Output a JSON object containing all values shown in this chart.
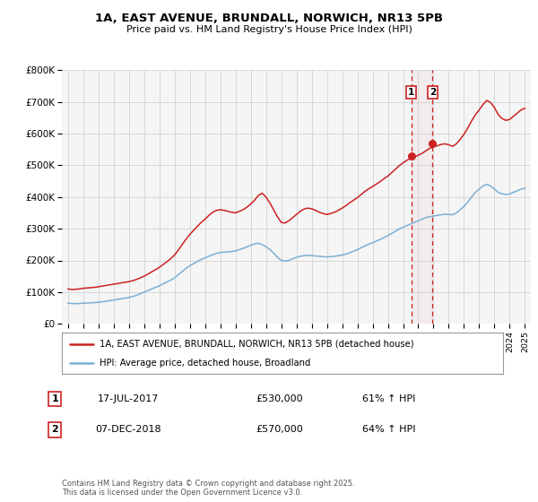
{
  "title_line1": "1A, EAST AVENUE, BRUNDALL, NORWICH, NR13 5PB",
  "title_line2": "Price paid vs. HM Land Registry's House Price Index (HPI)",
  "y_ticks": [
    0,
    100000,
    200000,
    300000,
    400000,
    500000,
    600000,
    700000,
    800000
  ],
  "y_tick_labels": [
    "£0",
    "£100K",
    "£200K",
    "£300K",
    "£400K",
    "£500K",
    "£600K",
    "£700K",
    "£800K"
  ],
  "hpi_color": "#7bafd4",
  "price_color": "#cc2222",
  "marker_color": "#cc2222",
  "vline_color": "#cc2222",
  "shade_color": "#e8c8c8",
  "grid_color": "#cccccc",
  "bg_color": "#f5f5f5",
  "legend_border_color": "#999999",
  "label_price": "1A, EAST AVENUE, BRUNDALL, NORWICH, NR13 5PB (detached house)",
  "label_hpi": "HPI: Average price, detached house, Broadland",
  "transaction1_date": "17-JUL-2017",
  "transaction1_price": "£530,000",
  "transaction1_pct": "61% ↑ HPI",
  "transaction1_year": 2017.54,
  "transaction1_value": 530000,
  "transaction2_date": "07-DEC-2018",
  "transaction2_price": "£570,000",
  "transaction2_pct": "64% ↑ HPI",
  "transaction2_year": 2018.93,
  "transaction2_value": 570000,
  "footer_text": "Contains HM Land Registry data © Crown copyright and database right 2025.\nThis data is licensed under the Open Government Licence v3.0.",
  "hpi_data": [
    [
      1995,
      65000
    ],
    [
      1995.25,
      64000
    ],
    [
      1995.5,
      63500
    ],
    [
      1995.75,
      64000
    ],
    [
      1996,
      65000
    ],
    [
      1996.25,
      65500
    ],
    [
      1996.5,
      66000
    ],
    [
      1996.75,
      67000
    ],
    [
      1997,
      68000
    ],
    [
      1997.25,
      69500
    ],
    [
      1997.5,
      71000
    ],
    [
      1997.75,
      73000
    ],
    [
      1998,
      75000
    ],
    [
      1998.25,
      77000
    ],
    [
      1998.5,
      79000
    ],
    [
      1998.75,
      81000
    ],
    [
      1999,
      83000
    ],
    [
      1999.25,
      86000
    ],
    [
      1999.5,
      90000
    ],
    [
      1999.75,
      95000
    ],
    [
      2000,
      100000
    ],
    [
      2000.25,
      105000
    ],
    [
      2000.5,
      110000
    ],
    [
      2000.75,
      115000
    ],
    [
      2001,
      120000
    ],
    [
      2001.25,
      126000
    ],
    [
      2001.5,
      132000
    ],
    [
      2001.75,
      138000
    ],
    [
      2002,
      145000
    ],
    [
      2002.25,
      155000
    ],
    [
      2002.5,
      165000
    ],
    [
      2002.75,
      175000
    ],
    [
      2003,
      183000
    ],
    [
      2003.25,
      190000
    ],
    [
      2003.5,
      197000
    ],
    [
      2003.75,
      203000
    ],
    [
      2004,
      208000
    ],
    [
      2004.25,
      213000
    ],
    [
      2004.5,
      218000
    ],
    [
      2004.75,
      222000
    ],
    [
      2005,
      225000
    ],
    [
      2005.25,
      226000
    ],
    [
      2005.5,
      227000
    ],
    [
      2005.75,
      228000
    ],
    [
      2006,
      230000
    ],
    [
      2006.25,
      234000
    ],
    [
      2006.5,
      238000
    ],
    [
      2006.75,
      243000
    ],
    [
      2007,
      248000
    ],
    [
      2007.25,
      252000
    ],
    [
      2007.5,
      254000
    ],
    [
      2007.75,
      250000
    ],
    [
      2008,
      243000
    ],
    [
      2008.25,
      235000
    ],
    [
      2008.5,
      223000
    ],
    [
      2008.75,
      210000
    ],
    [
      2009,
      200000
    ],
    [
      2009.25,
      198000
    ],
    [
      2009.5,
      200000
    ],
    [
      2009.75,
      205000
    ],
    [
      2010,
      210000
    ],
    [
      2010.25,
      213000
    ],
    [
      2010.5,
      215000
    ],
    [
      2010.75,
      216000
    ],
    [
      2011,
      215000
    ],
    [
      2011.25,
      214000
    ],
    [
      2011.5,
      213000
    ],
    [
      2011.75,
      212000
    ],
    [
      2012,
      211000
    ],
    [
      2012.25,
      212000
    ],
    [
      2012.5,
      213000
    ],
    [
      2012.75,
      215000
    ],
    [
      2013,
      217000
    ],
    [
      2013.25,
      220000
    ],
    [
      2013.5,
      224000
    ],
    [
      2013.75,
      229000
    ],
    [
      2014,
      234000
    ],
    [
      2014.25,
      240000
    ],
    [
      2014.5,
      246000
    ],
    [
      2014.75,
      251000
    ],
    [
      2015,
      256000
    ],
    [
      2015.25,
      261000
    ],
    [
      2015.5,
      266000
    ],
    [
      2015.75,
      272000
    ],
    [
      2016,
      278000
    ],
    [
      2016.25,
      285000
    ],
    [
      2016.5,
      292000
    ],
    [
      2016.75,
      299000
    ],
    [
      2017,
      305000
    ],
    [
      2017.25,
      310000
    ],
    [
      2017.5,
      315000
    ],
    [
      2017.75,
      320000
    ],
    [
      2018,
      325000
    ],
    [
      2018.25,
      330000
    ],
    [
      2018.5,
      335000
    ],
    [
      2018.75,
      338000
    ],
    [
      2019,
      340000
    ],
    [
      2019.25,
      342000
    ],
    [
      2019.5,
      344000
    ],
    [
      2019.75,
      346000
    ],
    [
      2020,
      345000
    ],
    [
      2020.25,
      344000
    ],
    [
      2020.5,
      350000
    ],
    [
      2020.75,
      360000
    ],
    [
      2021,
      370000
    ],
    [
      2021.25,
      385000
    ],
    [
      2021.5,
      400000
    ],
    [
      2021.75,
      415000
    ],
    [
      2022,
      425000
    ],
    [
      2022.25,
      435000
    ],
    [
      2022.5,
      440000
    ],
    [
      2022.75,
      435000
    ],
    [
      2023,
      425000
    ],
    [
      2023.25,
      415000
    ],
    [
      2023.5,
      410000
    ],
    [
      2023.75,
      408000
    ],
    [
      2024,
      410000
    ],
    [
      2024.25,
      415000
    ],
    [
      2024.5,
      420000
    ],
    [
      2024.75,
      425000
    ],
    [
      2025,
      428000
    ]
  ],
  "price_data": [
    [
      1995,
      110000
    ],
    [
      1995.25,
      108000
    ],
    [
      1995.5,
      109000
    ],
    [
      1995.75,
      110000
    ],
    [
      1996,
      112000
    ],
    [
      1996.25,
      113000
    ],
    [
      1996.5,
      114000
    ],
    [
      1996.75,
      115000
    ],
    [
      1997,
      117000
    ],
    [
      1997.25,
      119000
    ],
    [
      1997.5,
      121000
    ],
    [
      1997.75,
      123000
    ],
    [
      1998,
      125000
    ],
    [
      1998.25,
      127000
    ],
    [
      1998.5,
      129000
    ],
    [
      1998.75,
      131000
    ],
    [
      1999,
      133000
    ],
    [
      1999.25,
      136000
    ],
    [
      1999.5,
      140000
    ],
    [
      1999.75,
      145000
    ],
    [
      2000,
      150000
    ],
    [
      2000.25,
      157000
    ],
    [
      2000.5,
      164000
    ],
    [
      2000.75,
      171000
    ],
    [
      2001,
      178000
    ],
    [
      2001.25,
      187000
    ],
    [
      2001.5,
      196000
    ],
    [
      2001.75,
      206000
    ],
    [
      2002,
      217000
    ],
    [
      2002.25,
      233000
    ],
    [
      2002.5,
      250000
    ],
    [
      2002.75,
      267000
    ],
    [
      2003,
      282000
    ],
    [
      2003.25,
      295000
    ],
    [
      2003.5,
      308000
    ],
    [
      2003.75,
      320000
    ],
    [
      2004,
      330000
    ],
    [
      2004.25,
      342000
    ],
    [
      2004.5,
      352000
    ],
    [
      2004.75,
      358000
    ],
    [
      2005,
      360000
    ],
    [
      2005.25,
      358000
    ],
    [
      2005.5,
      355000
    ],
    [
      2005.75,
      352000
    ],
    [
      2006,
      350000
    ],
    [
      2006.25,
      355000
    ],
    [
      2006.5,
      360000
    ],
    [
      2006.75,
      368000
    ],
    [
      2007,
      378000
    ],
    [
      2007.25,
      390000
    ],
    [
      2007.5,
      405000
    ],
    [
      2007.75,
      412000
    ],
    [
      2008,
      400000
    ],
    [
      2008.25,
      382000
    ],
    [
      2008.5,
      360000
    ],
    [
      2008.75,
      338000
    ],
    [
      2009,
      320000
    ],
    [
      2009.25,
      318000
    ],
    [
      2009.5,
      325000
    ],
    [
      2009.75,
      335000
    ],
    [
      2010,
      345000
    ],
    [
      2010.25,
      355000
    ],
    [
      2010.5,
      362000
    ],
    [
      2010.75,
      365000
    ],
    [
      2011,
      363000
    ],
    [
      2011.25,
      358000
    ],
    [
      2011.5,
      352000
    ],
    [
      2011.75,
      348000
    ],
    [
      2012,
      345000
    ],
    [
      2012.25,
      348000
    ],
    [
      2012.5,
      352000
    ],
    [
      2012.75,
      358000
    ],
    [
      2013,
      365000
    ],
    [
      2013.25,
      373000
    ],
    [
      2013.5,
      382000
    ],
    [
      2013.75,
      390000
    ],
    [
      2014,
      398000
    ],
    [
      2014.25,
      408000
    ],
    [
      2014.5,
      418000
    ],
    [
      2014.75,
      426000
    ],
    [
      2015,
      433000
    ],
    [
      2015.25,
      441000
    ],
    [
      2015.5,
      449000
    ],
    [
      2015.75,
      458000
    ],
    [
      2016,
      466000
    ],
    [
      2016.25,
      477000
    ],
    [
      2016.5,
      488000
    ],
    [
      2016.75,
      499000
    ],
    [
      2017,
      508000
    ],
    [
      2017.25,
      516000
    ],
    [
      2017.5,
      522000
    ],
    [
      2017.75,
      527000
    ],
    [
      2018,
      532000
    ],
    [
      2018.25,
      538000
    ],
    [
      2018.5,
      546000
    ],
    [
      2018.75,
      554000
    ],
    [
      2019,
      558000
    ],
    [
      2019.25,
      562000
    ],
    [
      2019.5,
      566000
    ],
    [
      2019.75,
      568000
    ],
    [
      2020,
      565000
    ],
    [
      2020.25,
      560000
    ],
    [
      2020.5,
      568000
    ],
    [
      2020.75,
      582000
    ],
    [
      2021,
      598000
    ],
    [
      2021.25,
      618000
    ],
    [
      2021.5,
      640000
    ],
    [
      2021.75,
      660000
    ],
    [
      2022,
      675000
    ],
    [
      2022.25,
      692000
    ],
    [
      2022.5,
      705000
    ],
    [
      2022.75,
      698000
    ],
    [
      2023,
      682000
    ],
    [
      2023.25,
      660000
    ],
    [
      2023.5,
      648000
    ],
    [
      2023.75,
      642000
    ],
    [
      2024,
      645000
    ],
    [
      2024.25,
      655000
    ],
    [
      2024.5,
      665000
    ],
    [
      2024.75,
      675000
    ],
    [
      2025,
      680000
    ]
  ]
}
